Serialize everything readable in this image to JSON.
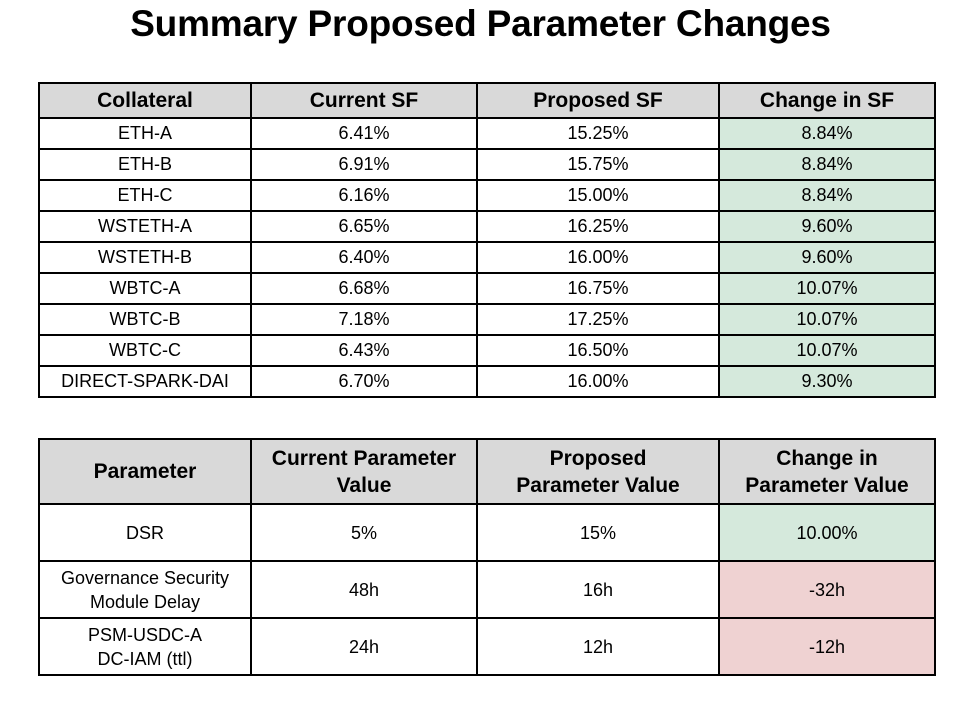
{
  "title": "Summary Proposed Parameter Changes",
  "colors": {
    "header_bg": "#d9d9d9",
    "positive_bg": "#d5e9dc",
    "negative_bg": "#efd2d2",
    "border": "#000000"
  },
  "sf_table": {
    "headers": [
      "Collateral",
      "Current SF",
      "Proposed SF",
      "Change in SF"
    ],
    "rows": [
      [
        "ETH-A",
        "6.41%",
        "15.25%",
        "8.84%"
      ],
      [
        "ETH-B",
        "6.91%",
        "15.75%",
        "8.84%"
      ],
      [
        "ETH-C",
        "6.16%",
        "15.00%",
        "8.84%"
      ],
      [
        "WSTETH-A",
        "6.65%",
        "16.25%",
        "9.60%"
      ],
      [
        "WSTETH-B",
        "6.40%",
        "16.00%",
        "9.60%"
      ],
      [
        "WBTC-A",
        "6.68%",
        "16.75%",
        "10.07%"
      ],
      [
        "WBTC-B",
        "7.18%",
        "17.25%",
        "10.07%"
      ],
      [
        "WBTC-C",
        "6.43%",
        "16.50%",
        "10.07%"
      ],
      [
        "DIRECT-SPARK-DAI",
        "6.70%",
        "16.00%",
        "9.30%"
      ]
    ]
  },
  "param_table": {
    "headers": [
      [
        "Parameter"
      ],
      [
        "Current Parameter",
        "Value"
      ],
      [
        "Proposed",
        "Parameter Value"
      ],
      [
        "Change in",
        "Parameter Value"
      ]
    ],
    "rows": [
      {
        "parameter": [
          "DSR"
        ],
        "current": "5%",
        "proposed": "15%",
        "change": "10.00%",
        "change_sign": "positive"
      },
      {
        "parameter": [
          "Governance Security",
          "Module Delay"
        ],
        "current": "48h",
        "proposed": "16h",
        "change": "-32h",
        "change_sign": "negative"
      },
      {
        "parameter": [
          "PSM-USDC-A",
          "DC-IAM (ttl)"
        ],
        "current": "24h",
        "proposed": "12h",
        "change": "-12h",
        "change_sign": "negative"
      }
    ]
  }
}
